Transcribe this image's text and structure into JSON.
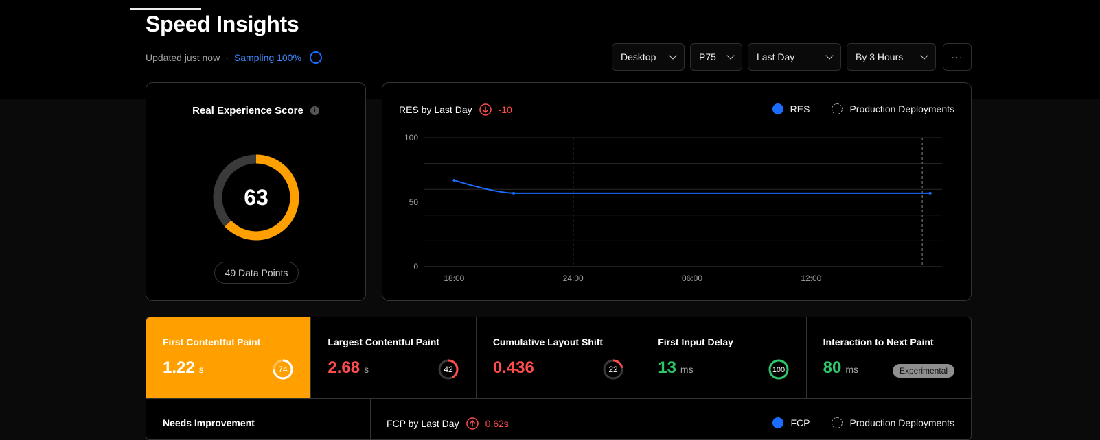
{
  "header": {
    "title": "Speed Insights",
    "updated": "Updated just now",
    "separator": "·",
    "sampling": "Sampling 100%"
  },
  "filters": [
    {
      "label": "Desktop"
    },
    {
      "label": "P75"
    },
    {
      "label": "Last Day"
    },
    {
      "label": "By 3 Hours"
    }
  ],
  "more_label": "···",
  "score_card": {
    "title": "Real Experience Score",
    "info_glyph": "i",
    "score": "63",
    "score_value": 63,
    "data_points": "49 Data Points",
    "gauge_color": "#ffa000",
    "track_color": "#3a3a3a"
  },
  "chart_card": {
    "title": "RES by Last Day",
    "delta": "-10",
    "legend": [
      "RES",
      "Production Deployments"
    ]
  },
  "chart_data": {
    "type": "line",
    "title": "RES by Last Day",
    "ylim": [
      0,
      100
    ],
    "yticks": [
      "100",
      "50",
      "0"
    ],
    "xticks": [
      "18:00",
      "24:00",
      "06:00",
      "12:00"
    ],
    "series": [
      {
        "name": "RES",
        "color": "#1a6dff",
        "points": [
          [
            18,
            67
          ],
          [
            21,
            57
          ],
          [
            42,
            57
          ]
        ]
      }
    ],
    "deployments_x": [
      24,
      41.6
    ],
    "x_range": [
      16.5,
      42.6
    ],
    "grid": true,
    "legend_position": "top-right"
  },
  "metrics": [
    {
      "name": "First Contentful Paint",
      "value": "1.22",
      "unit": "s",
      "score": "74",
      "score_value": 74,
      "value_color": "#ffffff",
      "ring_color": "#ffffff"
    },
    {
      "name": "Largest Contentful Paint",
      "value": "2.68",
      "unit": "s",
      "score": "42",
      "score_value": 42,
      "value_color": "#ff4d4d",
      "ring_color": "#ff4d4d"
    },
    {
      "name": "Cumulative Layout Shift",
      "value": "0.436",
      "unit": "",
      "score": "22",
      "score_value": 22,
      "value_color": "#ff4d4d",
      "ring_color": "#ff4d4d"
    },
    {
      "name": "First Input Delay",
      "value": "13",
      "unit": "ms",
      "score": "100",
      "score_value": 100,
      "value_color": "#2bc769",
      "ring_color": "#2bc769"
    },
    {
      "name": "Interaction to Next Paint",
      "value": "80",
      "unit": "ms",
      "badge": "Experimental",
      "value_color": "#2bc769"
    }
  ],
  "bottom": {
    "needs": "Needs Improvement",
    "fcp_title": "FCP by Last Day",
    "fcp_delta": "0.62s",
    "legend": [
      "FCP",
      "Production Deployments"
    ]
  }
}
